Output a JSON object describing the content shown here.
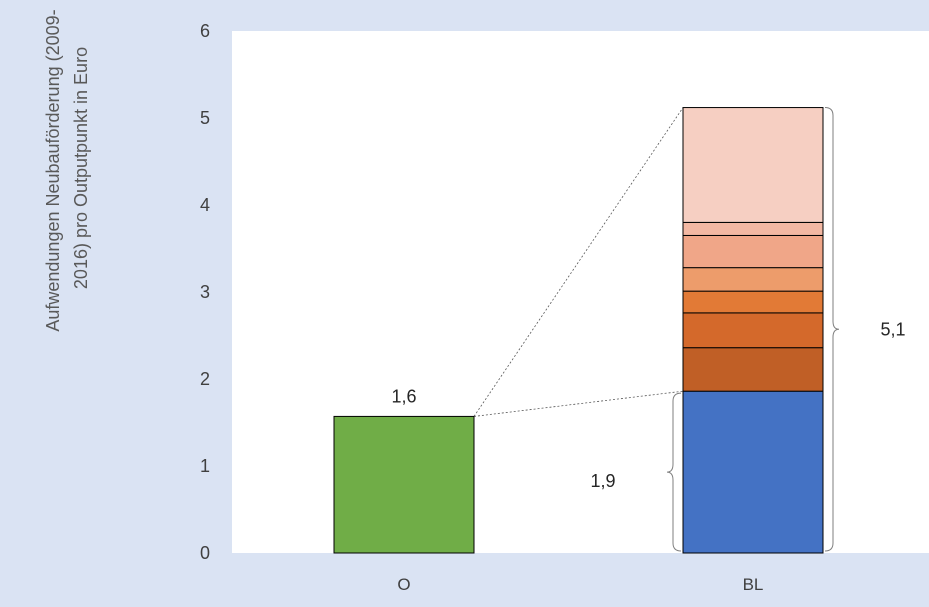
{
  "chart_data": {
    "type": "bar",
    "ylabel": [
      "Aufwendungen Neubauförderung (2009-",
      "2016) pro Outputpunkt in Euro"
    ],
    "ylim": [
      0,
      6
    ],
    "yticks": [
      0,
      1,
      2,
      3,
      4,
      5,
      6
    ],
    "yticklabels": [
      "0",
      "1",
      "2",
      "3",
      "4",
      "5",
      "6"
    ],
    "categories": [
      "O",
      "BL"
    ],
    "bars": [
      {
        "category": "O",
        "label": "1,6",
        "segments": [
          {
            "value": 1.57,
            "color": "#70ad47"
          }
        ]
      },
      {
        "category": "BL",
        "segments": [
          {
            "value": 1.86,
            "color": "#4472c4"
          },
          {
            "value": 0.5,
            "color": "#c05f26"
          },
          {
            "value": 0.4,
            "color": "#d4692b"
          },
          {
            "value": 0.25,
            "color": "#e27a36"
          },
          {
            "value": 0.27,
            "color": "#ed9c6b"
          },
          {
            "value": 0.37,
            "color": "#f0a688"
          },
          {
            "value": 0.15,
            "color": "#f3b8a3"
          },
          {
            "value": 1.32,
            "color": "#f6cfc2"
          }
        ]
      }
    ],
    "annotations": [
      {
        "text": "1,9",
        "bar": "BL",
        "from": 0,
        "to": 1.86
      },
      {
        "text": "5,1",
        "bar": "BL",
        "from": 0,
        "to": 5.12
      }
    ],
    "grid": false,
    "plot_background": "#ffffff",
    "figure_background": "#dae3f3"
  }
}
